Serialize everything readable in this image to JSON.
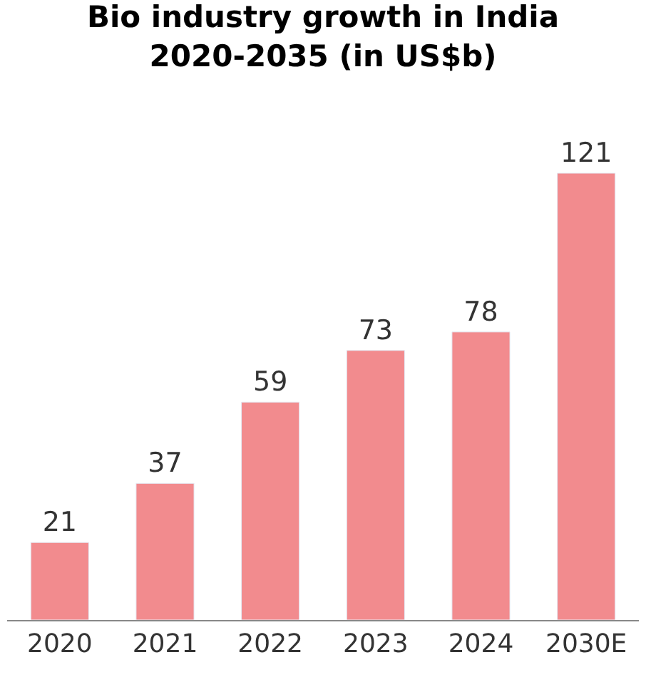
{
  "chart_data": {
    "type": "bar",
    "title": "Bio industry growth in India\n2020-2035 (in US$b)",
    "categories": [
      "2020",
      "2021",
      "2022",
      "2023",
      "2024",
      "2030E"
    ],
    "values": [
      21,
      37,
      59,
      73,
      78,
      121
    ],
    "color": "#f28b8e",
    "data_labels": true
  }
}
